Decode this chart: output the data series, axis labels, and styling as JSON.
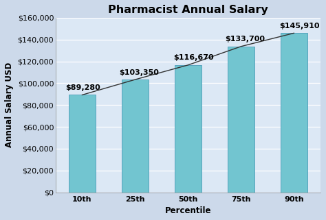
{
  "title": "Pharmacist Annual Salary",
  "categories": [
    "10th",
    "25th",
    "50th",
    "75th",
    "90th"
  ],
  "values": [
    89280,
    103350,
    116670,
    133700,
    145910
  ],
  "labels": [
    "$89,280",
    "$103,350",
    "$116,670",
    "$133,700",
    "$145,910"
  ],
  "xlabel": "Percentile",
  "ylabel": "Annual Salary USD",
  "ylim": [
    0,
    160000
  ],
  "yticks": [
    0,
    20000,
    40000,
    60000,
    80000,
    100000,
    120000,
    140000,
    160000
  ],
  "bar_color": "#72C5D0",
  "bar_edge_color": "#4A9BB8",
  "line_color": "#333333",
  "background_color": "#ccd9ea",
  "plot_bg_color": "#dce8f5",
  "title_fontsize": 11.5,
  "label_fontsize": 8,
  "axis_fontsize": 8.5,
  "tick_fontsize": 8
}
